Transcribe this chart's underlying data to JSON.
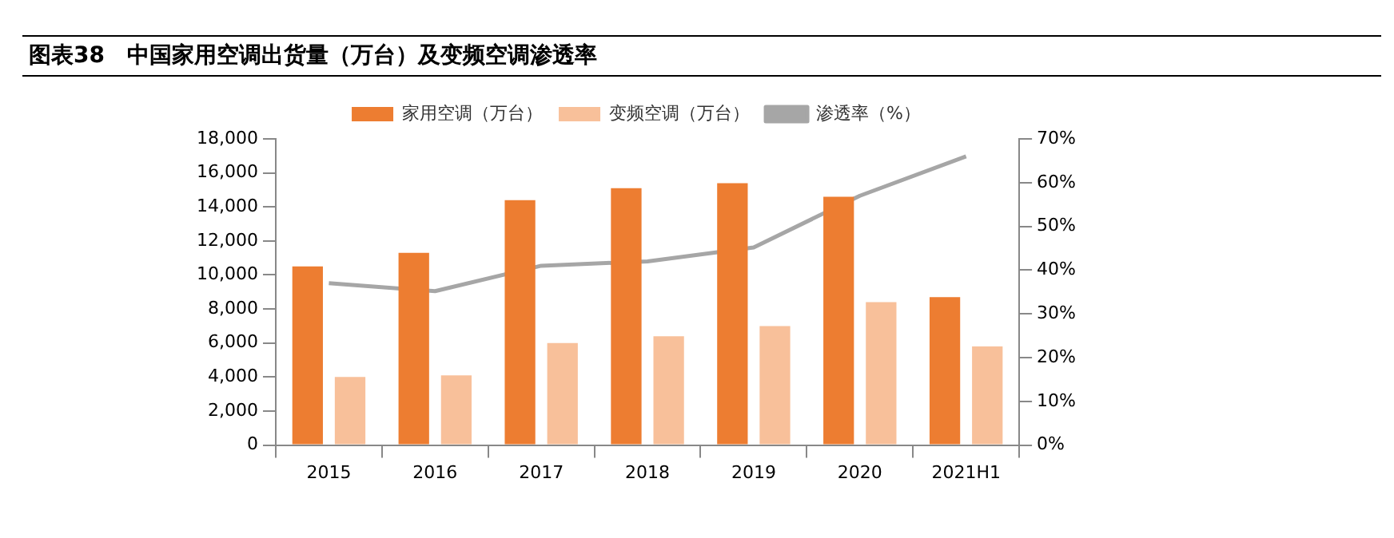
{
  "chart_data": {
    "type": "bar",
    "title": "图表38　中国家用空调出货量（万台）及变频空调渗透率",
    "categories": [
      "2015",
      "2016",
      "2017",
      "2018",
      "2019",
      "2020",
      "2021H1"
    ],
    "series": [
      {
        "name": "家用空调（万台）",
        "color": "#ed7d31",
        "values": [
          10500,
          11300,
          14400,
          15100,
          15400,
          14600,
          8700
        ]
      },
      {
        "name": "变频空调（万台）",
        "color": "#f8c09a",
        "values": [
          4000,
          4100,
          6000,
          6400,
          7000,
          8400,
          5800
        ]
      },
      {
        "name": "渗透率（%）",
        "type": "line",
        "axis": "y2",
        "color": "#a6a6a6",
        "values": [
          37,
          35.2,
          41,
          42,
          45.2,
          57,
          66
        ]
      }
    ],
    "ylim": [
      0,
      18000
    ],
    "yticks": [
      {
        "value": 0,
        "label": "0"
      },
      {
        "value": 2000,
        "label": "2,000"
      },
      {
        "value": 4000,
        "label": "4,000"
      },
      {
        "value": 6000,
        "label": "6,000"
      },
      {
        "value": 8000,
        "label": "8,000"
      },
      {
        "value": 10000,
        "label": "10,000"
      },
      {
        "value": 12000,
        "label": "12,000"
      },
      {
        "value": 14000,
        "label": "14,000"
      },
      {
        "value": 16000,
        "label": "16,000"
      },
      {
        "value": 18000,
        "label": "18,000"
      }
    ],
    "y2lim": [
      0,
      70
    ],
    "y2ticks": [
      {
        "value": 0,
        "label": "0%"
      },
      {
        "value": 10,
        "label": "10%"
      },
      {
        "value": 20,
        "label": "20%"
      },
      {
        "value": 30,
        "label": "30%"
      },
      {
        "value": 40,
        "label": "40%"
      },
      {
        "value": 50,
        "label": "50%"
      },
      {
        "value": 60,
        "label": "60%"
      },
      {
        "value": 70,
        "label": "70%"
      }
    ],
    "legend": "top",
    "grid": false,
    "marker": "none"
  }
}
